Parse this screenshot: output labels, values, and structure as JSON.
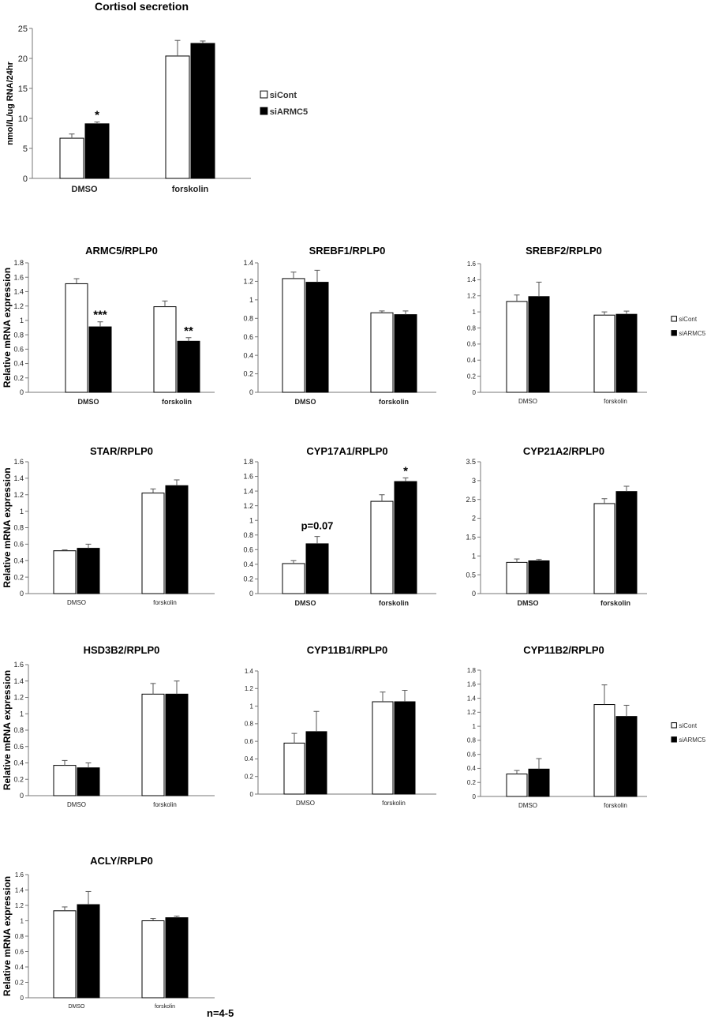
{
  "footnote": "n=4-5",
  "legend": {
    "labels": [
      "siCont",
      "siARMC5"
    ],
    "colors": [
      "#ffffff",
      "#000000"
    ]
  },
  "chart_data": [
    {
      "id": "cortisol",
      "type": "bar",
      "title": "Cortisol secretion",
      "ylabel": "nmol/L/ug RNA/24hr",
      "categories": [
        "DMSO",
        "forskolin"
      ],
      "ylim": [
        0,
        25
      ],
      "yticks": [
        0,
        5,
        10,
        15,
        20,
        25
      ],
      "yticklabels": [
        "0",
        "5",
        "10",
        "15",
        "20",
        "25"
      ],
      "series": [
        {
          "name": "siCont",
          "values": [
            6.7,
            20.4
          ],
          "errors": [
            0.7,
            2.6
          ]
        },
        {
          "name": "siARMC5",
          "values": [
            9.1,
            22.5
          ],
          "errors": [
            0.3,
            0.4
          ]
        }
      ],
      "annotations": [
        {
          "series": 1,
          "category": 0,
          "text": "*"
        }
      ],
      "legend": true
    },
    {
      "id": "armc5",
      "type": "bar",
      "title": "ARMC5/RPLP0",
      "ylabel": "Relative mRNA expression",
      "categories": [
        "DMSO",
        "forskolin"
      ],
      "ylim": [
        0,
        1.8
      ],
      "yticks": [
        0,
        0.2,
        0.4,
        0.6,
        0.8,
        1,
        1.2,
        1.4,
        1.6,
        1.8
      ],
      "yticklabels": [
        "0",
        "0.2",
        "0.4",
        "0.6",
        "0.8",
        "1",
        "1.2",
        "1.4",
        "1.6",
        "1.8"
      ],
      "series": [
        {
          "name": "siCont",
          "values": [
            1.51,
            1.19
          ],
          "errors": [
            0.07,
            0.08
          ]
        },
        {
          "name": "siARMC5",
          "values": [
            0.91,
            0.71
          ],
          "errors": [
            0.07,
            0.05
          ]
        }
      ],
      "annotations": [
        {
          "series": 1,
          "category": 0,
          "text": "***"
        },
        {
          "series": 1,
          "category": 1,
          "text": "**"
        }
      ]
    },
    {
      "id": "srebf1",
      "type": "bar",
      "title": "SREBF1/RPLP0",
      "ylabel": "",
      "categories": [
        "DMSO",
        "forskolin"
      ],
      "ylim": [
        0,
        1.4
      ],
      "yticks": [
        0,
        0.2,
        0.4,
        0.6,
        0.8,
        1,
        1.2,
        1.4
      ],
      "yticklabels": [
        "0",
        "0.2",
        "0.4",
        "0.6",
        "0.8",
        "1",
        "1.2",
        "1.4"
      ],
      "series": [
        {
          "name": "siCont",
          "values": [
            1.23,
            0.86
          ],
          "errors": [
            0.07,
            0.02
          ]
        },
        {
          "name": "siARMC5",
          "values": [
            1.19,
            0.84
          ],
          "errors": [
            0.13,
            0.04
          ]
        }
      ],
      "annotations": []
    },
    {
      "id": "srebf2",
      "type": "bar",
      "title": "SREBF2/RPLP0",
      "ylabel": "",
      "categories": [
        "DMSO",
        "forskolin"
      ],
      "ylim": [
        0,
        1.6
      ],
      "yticks": [
        0,
        0.2,
        0.4,
        0.6,
        0.8,
        1,
        1.2,
        1.4,
        1.6
      ],
      "yticklabels": [
        "0",
        "0.2",
        "0.4",
        "0.6",
        "0.8",
        "1",
        "1.2",
        "1.4",
        "1.6"
      ],
      "series": [
        {
          "name": "siCont",
          "values": [
            1.13,
            0.96
          ],
          "errors": [
            0.08,
            0.04
          ]
        },
        {
          "name": "siARMC5",
          "values": [
            1.19,
            0.97
          ],
          "errors": [
            0.18,
            0.04
          ]
        }
      ],
      "annotations": [],
      "legend": true
    },
    {
      "id": "star",
      "type": "bar",
      "title": "STAR/RPLP0",
      "ylabel": "Relative mRNA expression",
      "categories": [
        "DMSO",
        "forskolin"
      ],
      "ylim": [
        0,
        1.6
      ],
      "yticks": [
        0,
        0.2,
        0.4,
        0.6,
        0.8,
        1,
        1.2,
        1.4,
        1.6
      ],
      "yticklabels": [
        "0",
        "0.2",
        "0.4",
        "0.6",
        "0.8",
        "1",
        "1.2",
        "1.4",
        "1.6"
      ],
      "series": [
        {
          "name": "siCont",
          "values": [
            0.52,
            1.22
          ],
          "errors": [
            0.01,
            0.05
          ]
        },
        {
          "name": "siARMC5",
          "values": [
            0.55,
            1.31
          ],
          "errors": [
            0.05,
            0.07
          ]
        }
      ],
      "annotations": []
    },
    {
      "id": "cyp17a1",
      "type": "bar",
      "title": "CYP17A1/RPLP0",
      "ylabel": "",
      "categories": [
        "DMSO",
        "forskolin"
      ],
      "ylim": [
        0,
        1.8
      ],
      "yticks": [
        0,
        0.2,
        0.4,
        0.6,
        0.8,
        1,
        1.2,
        1.4,
        1.6,
        1.8
      ],
      "yticklabels": [
        "0",
        "0.2",
        "0.4",
        "0.6",
        "0.8",
        "1",
        "1.2",
        "1.4",
        "1.6",
        "1.8"
      ],
      "series": [
        {
          "name": "siCont",
          "values": [
            0.41,
            1.26
          ],
          "errors": [
            0.04,
            0.09
          ]
        },
        {
          "name": "siARMC5",
          "values": [
            0.68,
            1.53
          ],
          "errors": [
            0.1,
            0.05
          ]
        }
      ],
      "annotations": [
        {
          "series": 1,
          "category": 0,
          "text": "p=0.07"
        },
        {
          "series": 1,
          "category": 1,
          "text": "*"
        }
      ]
    },
    {
      "id": "cyp21a2",
      "type": "bar",
      "title": "CYP21A2/RPLP0",
      "ylabel": "",
      "categories": [
        "DMSO",
        "forskolin"
      ],
      "ylim": [
        0,
        3.5
      ],
      "yticks": [
        0,
        0.5,
        1,
        1.5,
        2,
        2.5,
        3,
        3.5
      ],
      "yticklabels": [
        "0",
        "0.5",
        "1",
        "1.5",
        "2",
        "2.5",
        "3",
        "3.5"
      ],
      "series": [
        {
          "name": "siCont",
          "values": [
            0.83,
            2.39
          ],
          "errors": [
            0.09,
            0.13
          ]
        },
        {
          "name": "siARMC5",
          "values": [
            0.87,
            2.71
          ],
          "errors": [
            0.04,
            0.14
          ]
        }
      ],
      "annotations": []
    },
    {
      "id": "hsd3b2",
      "type": "bar",
      "title": "HSD3B2/RPLP0",
      "ylabel": "Relative mRNA expression",
      "categories": [
        "DMSO",
        "forskolin"
      ],
      "ylim": [
        0,
        1.6
      ],
      "yticks": [
        0,
        0.2,
        0.4,
        0.6,
        0.8,
        1,
        1.2,
        1.4,
        1.6
      ],
      "yticklabels": [
        "0",
        "0.2",
        "0.4",
        "0.6",
        "0.8",
        "1",
        "1.2",
        "1.4",
        "1.6"
      ],
      "series": [
        {
          "name": "siCont",
          "values": [
            0.37,
            1.24
          ],
          "errors": [
            0.06,
            0.13
          ]
        },
        {
          "name": "siARMC5",
          "values": [
            0.34,
            1.24
          ],
          "errors": [
            0.06,
            0.16
          ]
        }
      ],
      "annotations": []
    },
    {
      "id": "cyp11b1",
      "type": "bar",
      "title": "CYP11B1/RPLP0",
      "ylabel": "",
      "categories": [
        "DMSO",
        "forskolin"
      ],
      "ylim": [
        0,
        1.4
      ],
      "yticks": [
        0,
        0.2,
        0.4,
        0.6,
        0.8,
        1,
        1.2,
        1.4
      ],
      "yticklabels": [
        "0",
        "0.2",
        "0.4",
        "0.6",
        "0.8",
        "1",
        "1.2",
        "1.4"
      ],
      "series": [
        {
          "name": "siCont",
          "values": [
            0.58,
            1.05
          ],
          "errors": [
            0.11,
            0.11
          ]
        },
        {
          "name": "siARMC5",
          "values": [
            0.71,
            1.05
          ],
          "errors": [
            0.23,
            0.13
          ]
        }
      ],
      "annotations": []
    },
    {
      "id": "cyp11b2",
      "type": "bar",
      "title": "CYP11B2/RPLP0",
      "ylabel": "",
      "categories": [
        "DMSO",
        "forskolin"
      ],
      "ylim": [
        0,
        1.8
      ],
      "yticks": [
        0,
        0.2,
        0.4,
        0.6,
        0.8,
        1,
        1.2,
        1.4,
        1.6,
        1.8
      ],
      "yticklabels": [
        "0",
        "0.2",
        "0.4",
        "0.6",
        "0.8",
        "1",
        "1.2",
        "1.4",
        "1.6",
        "1.8"
      ],
      "series": [
        {
          "name": "siCont",
          "values": [
            0.32,
            1.31
          ],
          "errors": [
            0.05,
            0.28
          ]
        },
        {
          "name": "siARMC5",
          "values": [
            0.39,
            1.14
          ],
          "errors": [
            0.15,
            0.16
          ]
        }
      ],
      "annotations": [],
      "legend": true
    },
    {
      "id": "acly",
      "type": "bar",
      "title": "ACLY/RPLP0",
      "ylabel": "Relative mRNA expression",
      "categories": [
        "DMSO",
        "forskolin"
      ],
      "ylim": [
        0,
        1.6
      ],
      "yticks": [
        0,
        0.2,
        0.4,
        0.6,
        0.8,
        1,
        1.2,
        1.4,
        1.6
      ],
      "yticklabels": [
        "0",
        "0.2",
        "0.4",
        "0.6",
        "0.8",
        "1",
        "1.2",
        "1.4",
        "1.6"
      ],
      "series": [
        {
          "name": "siCont",
          "values": [
            1.13,
            1.0
          ],
          "errors": [
            0.05,
            0.03
          ]
        },
        {
          "name": "siARMC5",
          "values": [
            1.21,
            1.04
          ],
          "errors": [
            0.17,
            0.02
          ]
        }
      ],
      "annotations": []
    }
  ]
}
